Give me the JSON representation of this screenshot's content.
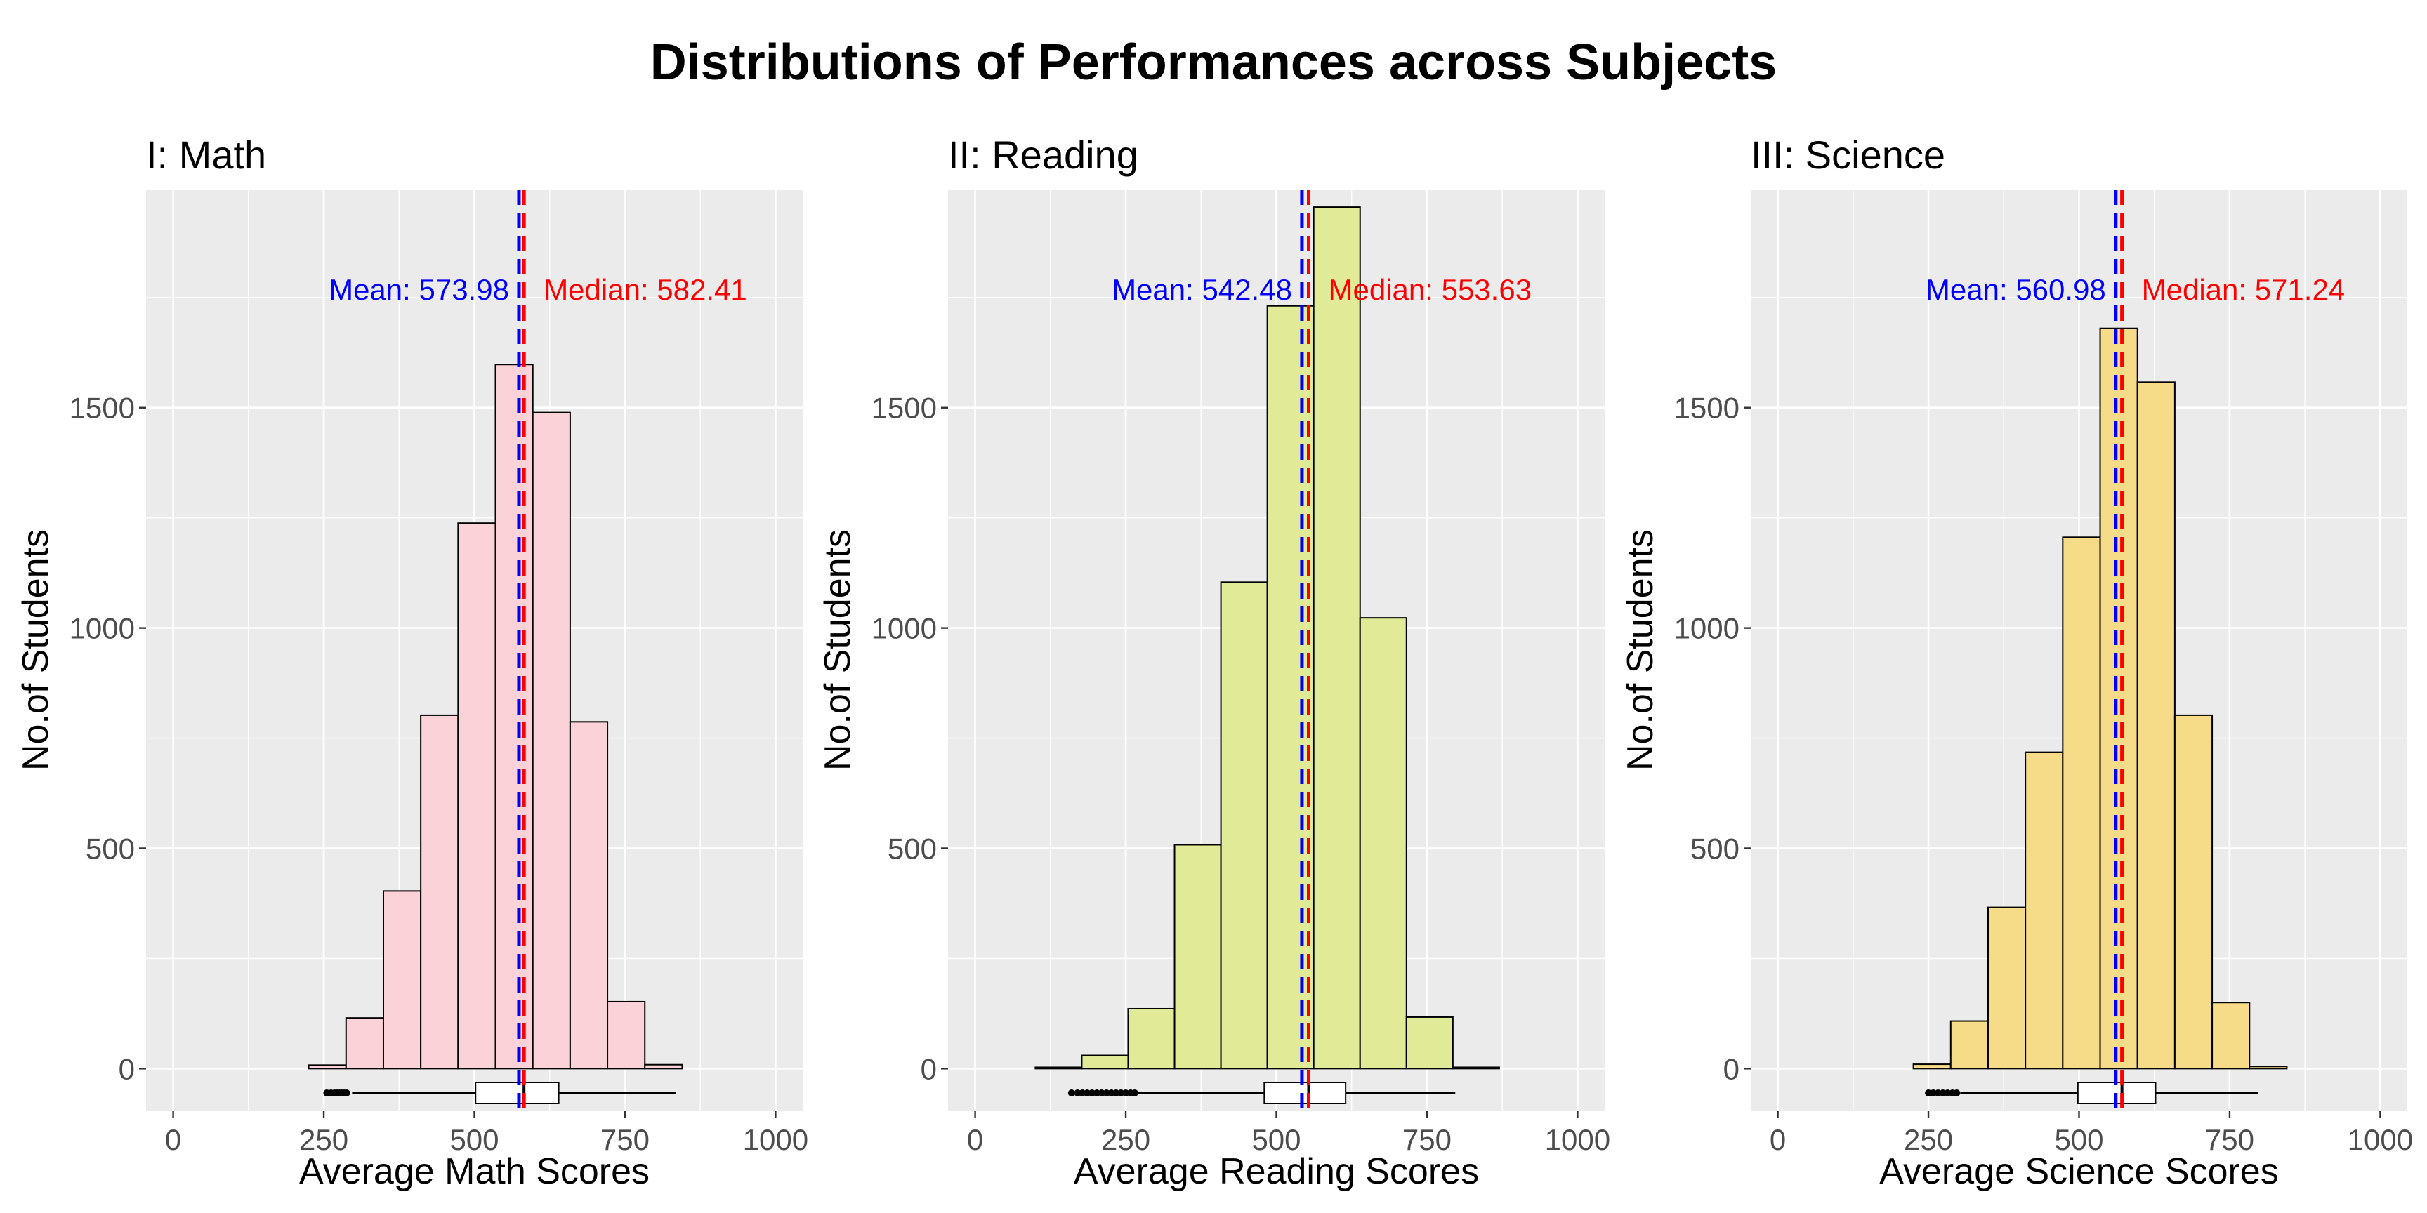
{
  "title": "Distributions of Performances across Subjects",
  "colors": {
    "panel_bg": "#EBEBEB",
    "grid": "#FFFFFF",
    "mean_line": "#0000FF",
    "median_line": "#FF0000",
    "bar_stroke": "#000000"
  },
  "chart_data": [
    {
      "type": "bar",
      "subtitle": "I: Math",
      "xlabel": "Average Math Scores",
      "ylabel": "No.of Students",
      "xlim": [
        -45,
        1045
      ],
      "ylim": [
        -95,
        1995
      ],
      "x_ticks": [
        0,
        250,
        500,
        750,
        1000
      ],
      "y_ticks": [
        0,
        500,
        1000,
        1500
      ],
      "fill": "#FAD2D7",
      "bins": [
        {
          "x0": 225,
          "x1": 287,
          "count": 8
        },
        {
          "x0": 287,
          "x1": 349,
          "count": 115
        },
        {
          "x0": 349,
          "x1": 411,
          "count": 403
        },
        {
          "x0": 411,
          "x1": 473,
          "count": 802
        },
        {
          "x0": 473,
          "x1": 535,
          "count": 1238
        },
        {
          "x0": 535,
          "x1": 597,
          "count": 1598
        },
        {
          "x0": 597,
          "x1": 659,
          "count": 1489
        },
        {
          "x0": 659,
          "x1": 721,
          "count": 787
        },
        {
          "x0": 721,
          "x1": 783,
          "count": 152
        },
        {
          "x0": 783,
          "x1": 845,
          "count": 9
        }
      ],
      "mean": 573.98,
      "median": 582.41,
      "mean_label": "Mean: 573.98",
      "median_label": "Median: 582.41",
      "boxplot": {
        "min": 297,
        "q1": 502,
        "median": 582.41,
        "q3": 640,
        "max": 835,
        "outliers": [
          255,
          262,
          268,
          272,
          276,
          280,
          284,
          288
        ]
      }
    },
    {
      "type": "bar",
      "subtitle": "II: Reading",
      "xlabel": "Average Reading Scores",
      "ylabel": "No.of Students",
      "xlim": [
        -45,
        1045
      ],
      "ylim": [
        -95,
        1995
      ],
      "x_ticks": [
        0,
        250,
        500,
        750,
        1000
      ],
      "y_ticks": [
        0,
        500,
        1000,
        1500
      ],
      "fill": "#E1EA97",
      "bins": [
        {
          "x0": 100,
          "x1": 177,
          "count": 3
        },
        {
          "x0": 177,
          "x1": 254,
          "count": 30
        },
        {
          "x0": 254,
          "x1": 331,
          "count": 136
        },
        {
          "x0": 331,
          "x1": 408,
          "count": 508
        },
        {
          "x0": 408,
          "x1": 485,
          "count": 1104
        },
        {
          "x0": 485,
          "x1": 562,
          "count": 1731
        },
        {
          "x0": 562,
          "x1": 639,
          "count": 1955
        },
        {
          "x0": 639,
          "x1": 716,
          "count": 1023
        },
        {
          "x0": 716,
          "x1": 793,
          "count": 117
        },
        {
          "x0": 793,
          "x1": 870,
          "count": 3
        }
      ],
      "mean": 542.48,
      "median": 553.63,
      "mean_label": "Mean: 542.48",
      "median_label": "Median: 553.63",
      "boxplot": {
        "min": 270,
        "q1": 480,
        "median": 553.63,
        "q3": 615,
        "max": 797,
        "outliers": [
          160,
          170,
          178,
          186,
          194,
          202,
          210,
          218,
          226,
          234,
          242,
          250,
          258,
          265
        ]
      }
    },
    {
      "type": "bar",
      "subtitle": "III: Science",
      "xlabel": "Average Science Scores",
      "ylabel": "No.of Students",
      "xlim": [
        -45,
        1045
      ],
      "ylim": [
        -95,
        1995
      ],
      "x_ticks": [
        0,
        250,
        500,
        750,
        1000
      ],
      "y_ticks": [
        0,
        500,
        1000,
        1500
      ],
      "fill": "#F6DC88",
      "bins": [
        {
          "x0": 225,
          "x1": 287,
          "count": 10
        },
        {
          "x0": 287,
          "x1": 349,
          "count": 108
        },
        {
          "x0": 349,
          "x1": 411,
          "count": 366
        },
        {
          "x0": 411,
          "x1": 473,
          "count": 718
        },
        {
          "x0": 473,
          "x1": 535,
          "count": 1206
        },
        {
          "x0": 535,
          "x1": 597,
          "count": 1680
        },
        {
          "x0": 597,
          "x1": 659,
          "count": 1558
        },
        {
          "x0": 659,
          "x1": 721,
          "count": 802
        },
        {
          "x0": 721,
          "x1": 783,
          "count": 150
        },
        {
          "x0": 783,
          "x1": 845,
          "count": 5
        }
      ],
      "mean": 560.98,
      "median": 571.24,
      "mean_label": "Mean: 560.98",
      "median_label": "Median: 571.24",
      "boxplot": {
        "min": 303,
        "q1": 498,
        "median": 571.24,
        "q3": 627,
        "max": 797,
        "outliers": [
          250,
          258,
          266,
          274,
          282,
          290,
          297
        ]
      }
    }
  ]
}
